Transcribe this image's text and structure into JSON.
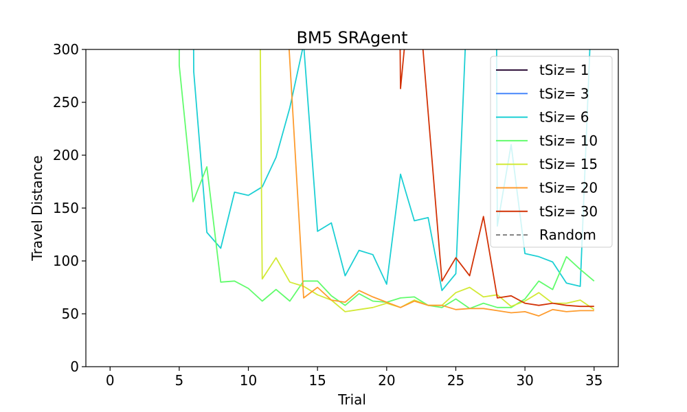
{
  "chart_data": {
    "type": "line",
    "title": "BM5  SRAgent",
    "xlabel": "Trial",
    "ylabel": "Travel Distance",
    "xlim": [
      -1.75,
      36.75
    ],
    "ylim": [
      0,
      300
    ],
    "xticks": [
      0,
      5,
      10,
      15,
      20,
      25,
      30,
      35
    ],
    "yticks": [
      0,
      50,
      100,
      150,
      200,
      250,
      300
    ],
    "grid": false,
    "legend_position": "top-right",
    "series": [
      {
        "name": "tSiz= 1",
        "color": "#30123b",
        "dashed": false,
        "points": []
      },
      {
        "name": "tSiz= 3",
        "color": "#4686fb",
        "dashed": false,
        "points": []
      },
      {
        "name": "tSiz= 6",
        "color": "#1bcfd4",
        "dashed": false,
        "points": [
          [
            6,
            400
          ],
          [
            6.05,
            279
          ],
          [
            7,
            127
          ],
          [
            8,
            112
          ],
          [
            9,
            165
          ],
          [
            10,
            162
          ],
          [
            11,
            170
          ],
          [
            12,
            198
          ],
          [
            13,
            245
          ],
          [
            14,
            305
          ],
          [
            15,
            128
          ],
          [
            16,
            136
          ],
          [
            17,
            86
          ],
          [
            18,
            110
          ],
          [
            19,
            106
          ],
          [
            20,
            78
          ],
          [
            21,
            182
          ],
          [
            22,
            138
          ],
          [
            23,
            141
          ],
          [
            24,
            72
          ],
          [
            25,
            88
          ],
          [
            26,
            400
          ],
          [
            27.5,
            400
          ],
          [
            27.95,
            300
          ],
          [
            28,
            133
          ],
          [
            29,
            210
          ],
          [
            30,
            107
          ],
          [
            31,
            104
          ],
          [
            32,
            99
          ],
          [
            33,
            79
          ],
          [
            34,
            76
          ],
          [
            35,
            400
          ]
        ]
      },
      {
        "name": "tSiz= 10",
        "color": "#61fc6c",
        "dashed": false,
        "points": [
          [
            5,
            400
          ],
          [
            5,
            285
          ],
          [
            6,
            156
          ],
          [
            7,
            189
          ],
          [
            8,
            80
          ],
          [
            9,
            81
          ],
          [
            10,
            74
          ],
          [
            11,
            62
          ],
          [
            12,
            73
          ],
          [
            13,
            62
          ],
          [
            14,
            81
          ],
          [
            15,
            81
          ],
          [
            16,
            67
          ],
          [
            17,
            58
          ],
          [
            18,
            69
          ],
          [
            19,
            62
          ],
          [
            20,
            61
          ],
          [
            21,
            65
          ],
          [
            22,
            66
          ],
          [
            23,
            58
          ],
          [
            24,
            56
          ],
          [
            25,
            64
          ],
          [
            26,
            55
          ],
          [
            27,
            60
          ],
          [
            28,
            56
          ],
          [
            29,
            56
          ],
          [
            30,
            64
          ],
          [
            31,
            81
          ],
          [
            32,
            73
          ],
          [
            33,
            104
          ],
          [
            34,
            92
          ],
          [
            35,
            81
          ]
        ]
      },
      {
        "name": "tSiz= 15",
        "color": "#d2e935",
        "dashed": false,
        "points": [
          [
            10.8,
            400
          ],
          [
            11,
            83
          ],
          [
            12,
            103
          ],
          [
            13,
            80
          ],
          [
            14,
            76
          ],
          [
            15,
            68
          ],
          [
            16,
            63
          ],
          [
            17,
            52
          ],
          [
            18,
            54
          ],
          [
            19,
            56
          ],
          [
            20,
            60
          ],
          [
            21,
            56
          ],
          [
            22,
            63
          ],
          [
            23,
            58
          ],
          [
            24,
            58
          ],
          [
            25,
            70
          ],
          [
            26,
            75
          ],
          [
            27,
            66
          ],
          [
            28,
            68
          ],
          [
            29,
            57
          ],
          [
            30,
            62
          ],
          [
            31,
            70
          ],
          [
            32,
            60
          ],
          [
            33,
            60
          ],
          [
            34,
            63
          ],
          [
            35,
            54
          ]
        ]
      },
      {
        "name": "tSiz= 20",
        "color": "#fe9b2d",
        "dashed": false,
        "points": [
          [
            12.5,
            400
          ],
          [
            14,
            65
          ],
          [
            15,
            75
          ],
          [
            16,
            63
          ],
          [
            17,
            61
          ],
          [
            18,
            72
          ],
          [
            19,
            66
          ],
          [
            20,
            61
          ],
          [
            21,
            56
          ],
          [
            22,
            62
          ],
          [
            23,
            58
          ],
          [
            24,
            58
          ],
          [
            25,
            54
          ],
          [
            26,
            55
          ],
          [
            27,
            55
          ],
          [
            28,
            53
          ],
          [
            29,
            51
          ],
          [
            30,
            52
          ],
          [
            31,
            48
          ],
          [
            32,
            54
          ],
          [
            33,
            52
          ],
          [
            34,
            53
          ],
          [
            35,
            53
          ]
        ]
      },
      {
        "name": "tSiz= 30",
        "color": "#d23105",
        "dashed": false,
        "points": [
          [
            20.9,
            400
          ],
          [
            21,
            263
          ],
          [
            22,
            400
          ],
          [
            24,
            81
          ],
          [
            25,
            103
          ],
          [
            26,
            86
          ],
          [
            27,
            142
          ],
          [
            28,
            65
          ],
          [
            29,
            67
          ],
          [
            30,
            60
          ],
          [
            31,
            58
          ],
          [
            32,
            60
          ],
          [
            33,
            58
          ],
          [
            34,
            57
          ],
          [
            35,
            57
          ]
        ]
      },
      {
        "name": "Random",
        "color": "#808080",
        "dashed": true,
        "points": []
      }
    ]
  }
}
